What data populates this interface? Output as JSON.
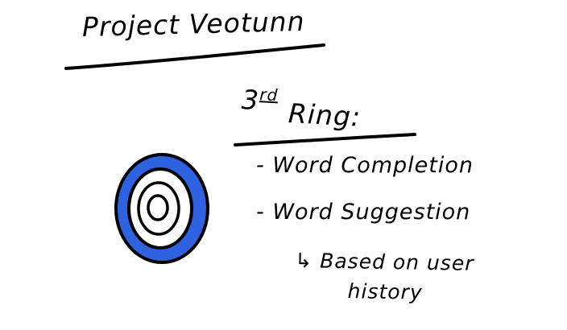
{
  "colors": {
    "ink": "#000000",
    "ring_fill": "#2e62e0",
    "background": "#ffffff"
  },
  "title": "Project Veotunn",
  "ring_heading": {
    "ordinal_number": "3",
    "ordinal_suffix": "rd",
    "label": "Ring:"
  },
  "items": [
    "- Word Completion",
    "- Word Suggestion"
  ],
  "sub_note": {
    "arrow": "↳",
    "line1": "Based on user",
    "line2": "history"
  },
  "target_icon": {
    "ring_count": 3
  }
}
